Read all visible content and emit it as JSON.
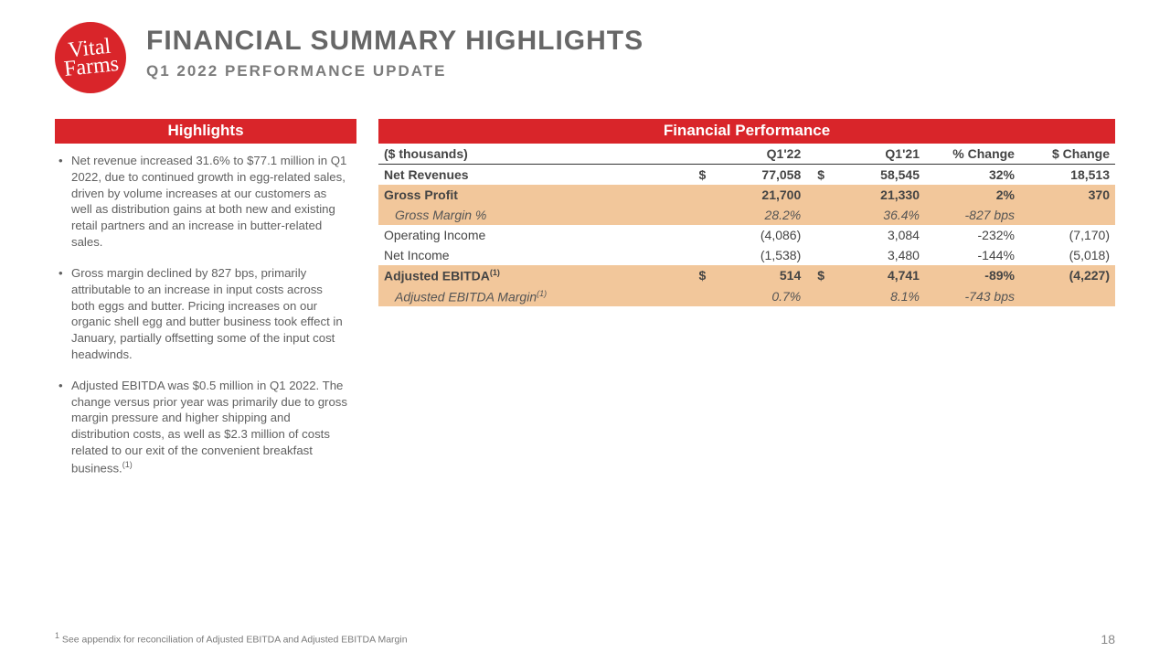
{
  "brand": {
    "logo_text": "Vital\nFarms",
    "logo_bg": "#d9252a"
  },
  "title": "FINANCIAL SUMMARY HIGHLIGHTS",
  "subtitle": "Q1 2022 PERFORMANCE UPDATE",
  "left": {
    "header": "Highlights",
    "bullets": [
      "Net revenue increased 31.6% to $77.1 million in Q1 2022, due to continued growth in egg-related sales, driven by volume increases at our customers as well as distribution gains at both new and existing retail partners and an increase in butter-related sales.",
      "Gross margin declined by 827 bps, primarily attributable to an increase in input costs across both eggs and butter. Pricing increases on our organic shell egg and butter business took effect in January, partially offsetting some of the input cost headwinds.",
      "Adjusted EBITDA was $0.5 million in Q1 2022. The change versus prior year was primarily due to gross margin pressure and higher shipping and distribution costs, as well as $2.3 million of costs related to our exit of the convenient breakfast business."
    ],
    "bullet3_sup": "(1)"
  },
  "right": {
    "header": "Financial Performance",
    "columns": [
      "($ thousands)",
      "Q1'22",
      "Q1'21",
      "% Change",
      "$ Change"
    ],
    "highlight_bg": "#f2c79b",
    "rows": [
      {
        "label": "Net Revenues",
        "cur1": "$",
        "v1": "77,058",
        "cur2": "$",
        "v2": "58,545",
        "pct": "32%",
        "chg": "18,513",
        "hl": false,
        "bold": true,
        "italic": false,
        "indent": false,
        "sup": ""
      },
      {
        "label": "Gross Profit",
        "cur1": "",
        "v1": "21,700",
        "cur2": "",
        "v2": "21,330",
        "pct": "2%",
        "chg": "370",
        "hl": true,
        "bold": true,
        "italic": false,
        "indent": false,
        "sup": ""
      },
      {
        "label": "Gross Margin %",
        "cur1": "",
        "v1": "28.2%",
        "cur2": "",
        "v2": "36.4%",
        "pct": "-827 bps",
        "chg": "",
        "hl": true,
        "bold": false,
        "italic": true,
        "indent": true,
        "sup": ""
      },
      {
        "label": "Operating Income",
        "cur1": "",
        "v1": "(4,086)",
        "cur2": "",
        "v2": "3,084",
        "pct": "-232%",
        "chg": "(7,170)",
        "hl": false,
        "bold": false,
        "italic": false,
        "indent": false,
        "sup": ""
      },
      {
        "label": "Net Income",
        "cur1": "",
        "v1": "(1,538)",
        "cur2": "",
        "v2": "3,480",
        "pct": "-144%",
        "chg": "(5,018)",
        "hl": false,
        "bold": false,
        "italic": false,
        "indent": false,
        "sup": ""
      },
      {
        "label": "Adjusted EBITDA",
        "cur1": "$",
        "v1": "514",
        "cur2": "$",
        "v2": "4,741",
        "pct": "-89%",
        "chg": "(4,227)",
        "hl": true,
        "bold": true,
        "italic": false,
        "indent": false,
        "sup": "(1)"
      },
      {
        "label": "Adjusted EBITDA Margin",
        "cur1": "",
        "v1": "0.7%",
        "cur2": "",
        "v2": "8.1%",
        "pct": "-743 bps",
        "chg": "",
        "hl": true,
        "bold": false,
        "italic": true,
        "indent": true,
        "sup": "(1)"
      }
    ]
  },
  "footnote_sup": "1",
  "footnote": " See appendix for reconciliation of Adjusted EBITDA and Adjusted EBITDA Margin",
  "page_number": "18"
}
